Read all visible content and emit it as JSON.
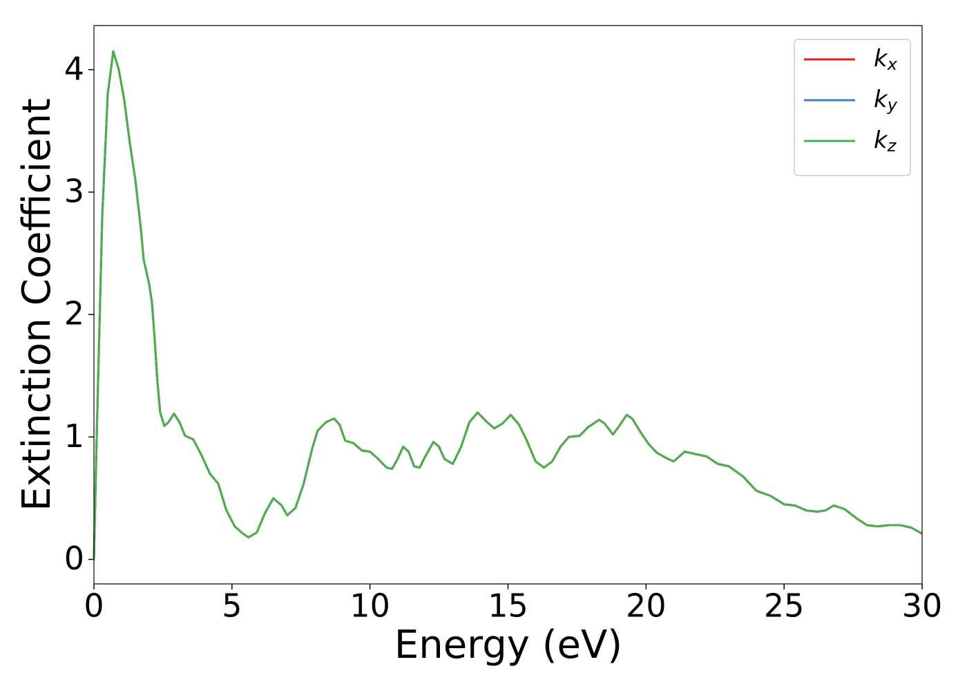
{
  "chart_data": {
    "type": "line",
    "xlabel": "Energy (eV)",
    "ylabel": "Extinction Coefficient",
    "xlim": [
      0,
      30
    ],
    "ylim": [
      -0.2,
      4.36
    ],
    "xticks": [
      0,
      5,
      10,
      15,
      20,
      25,
      30
    ],
    "yticks": [
      0,
      1,
      2,
      3,
      4
    ],
    "legend": "upper right",
    "x": [
      0,
      0.1,
      0.3,
      0.5,
      0.7,
      0.9,
      1.1,
      1.3,
      1.5,
      1.7,
      1.8,
      2.0,
      2.1,
      2.2,
      2.3,
      2.4,
      2.55,
      2.7,
      2.9,
      3.1,
      3.3,
      3.6,
      3.9,
      4.2,
      4.5,
      4.8,
      5.1,
      5.4,
      5.6,
      5.9,
      6.2,
      6.5,
      6.8,
      7.0,
      7.3,
      7.6,
      7.9,
      8.1,
      8.4,
      8.7,
      8.9,
      9.1,
      9.4,
      9.7,
      10.0,
      10.3,
      10.6,
      10.8,
      11.0,
      11.2,
      11.4,
      11.6,
      11.8,
      12.0,
      12.3,
      12.5,
      12.7,
      13.0,
      13.3,
      13.6,
      13.9,
      14.2,
      14.5,
      14.8,
      15.1,
      15.4,
      15.7,
      16.0,
      16.3,
      16.6,
      16.9,
      17.2,
      17.6,
      17.9,
      18.3,
      18.5,
      18.8,
      19.0,
      19.3,
      19.5,
      19.8,
      20.1,
      20.4,
      20.8,
      21.0,
      21.4,
      21.8,
      22.2,
      22.6,
      23.0,
      23.5,
      24.0,
      24.5,
      25.0,
      25.4,
      25.8,
      26.2,
      26.5,
      26.8,
      27.2,
      27.6,
      28.0,
      28.4,
      28.8,
      29.2,
      29.6,
      30.0
    ],
    "series": [
      {
        "name": "kx",
        "color": "#e41a1c",
        "values": [
          0,
          1.0,
          2.8,
          3.8,
          4.15,
          4.0,
          3.75,
          3.4,
          3.1,
          2.7,
          2.45,
          2.25,
          2.1,
          1.8,
          1.45,
          1.2,
          1.09,
          1.12,
          1.19,
          1.12,
          1.01,
          0.98,
          0.85,
          0.7,
          0.62,
          0.4,
          0.27,
          0.21,
          0.18,
          0.22,
          0.38,
          0.5,
          0.44,
          0.36,
          0.42,
          0.62,
          0.9,
          1.05,
          1.12,
          1.15,
          1.1,
          0.97,
          0.95,
          0.89,
          0.88,
          0.82,
          0.75,
          0.74,
          0.82,
          0.92,
          0.88,
          0.76,
          0.75,
          0.84,
          0.96,
          0.92,
          0.82,
          0.78,
          0.92,
          1.12,
          1.2,
          1.13,
          1.07,
          1.11,
          1.18,
          1.1,
          0.96,
          0.8,
          0.75,
          0.8,
          0.92,
          1.0,
          1.01,
          1.08,
          1.14,
          1.11,
          1.02,
          1.08,
          1.18,
          1.15,
          1.04,
          0.94,
          0.87,
          0.82,
          0.8,
          0.88,
          0.86,
          0.84,
          0.78,
          0.76,
          0.68,
          0.56,
          0.52,
          0.45,
          0.44,
          0.4,
          0.39,
          0.4,
          0.44,
          0.41,
          0.34,
          0.28,
          0.27,
          0.28,
          0.28,
          0.26,
          0.21
        ]
      },
      {
        "name": "ky",
        "color": "#377eb8",
        "values": [
          0,
          1.0,
          2.8,
          3.8,
          4.15,
          4.0,
          3.75,
          3.4,
          3.1,
          2.7,
          2.45,
          2.25,
          2.1,
          1.8,
          1.45,
          1.2,
          1.09,
          1.12,
          1.19,
          1.12,
          1.01,
          0.98,
          0.85,
          0.7,
          0.62,
          0.4,
          0.27,
          0.21,
          0.18,
          0.22,
          0.38,
          0.5,
          0.44,
          0.36,
          0.42,
          0.62,
          0.9,
          1.05,
          1.12,
          1.15,
          1.1,
          0.97,
          0.95,
          0.89,
          0.88,
          0.82,
          0.75,
          0.74,
          0.82,
          0.92,
          0.88,
          0.76,
          0.75,
          0.84,
          0.96,
          0.92,
          0.82,
          0.78,
          0.92,
          1.12,
          1.2,
          1.13,
          1.07,
          1.11,
          1.18,
          1.1,
          0.96,
          0.8,
          0.75,
          0.8,
          0.92,
          1.0,
          1.01,
          1.08,
          1.14,
          1.11,
          1.02,
          1.08,
          1.18,
          1.15,
          1.04,
          0.94,
          0.87,
          0.82,
          0.8,
          0.88,
          0.86,
          0.84,
          0.78,
          0.76,
          0.68,
          0.56,
          0.52,
          0.45,
          0.44,
          0.4,
          0.39,
          0.4,
          0.44,
          0.41,
          0.34,
          0.28,
          0.27,
          0.28,
          0.28,
          0.26,
          0.21
        ]
      },
      {
        "name": "kz",
        "color": "#4daf4a",
        "values": [
          0,
          1.0,
          2.8,
          3.8,
          4.15,
          4.0,
          3.75,
          3.4,
          3.1,
          2.7,
          2.45,
          2.25,
          2.1,
          1.8,
          1.45,
          1.2,
          1.09,
          1.12,
          1.19,
          1.12,
          1.01,
          0.98,
          0.85,
          0.7,
          0.62,
          0.4,
          0.27,
          0.21,
          0.18,
          0.22,
          0.38,
          0.5,
          0.44,
          0.36,
          0.42,
          0.62,
          0.9,
          1.05,
          1.12,
          1.15,
          1.1,
          0.97,
          0.95,
          0.89,
          0.88,
          0.82,
          0.75,
          0.74,
          0.82,
          0.92,
          0.88,
          0.76,
          0.75,
          0.84,
          0.96,
          0.92,
          0.82,
          0.78,
          0.92,
          1.12,
          1.2,
          1.13,
          1.07,
          1.11,
          1.18,
          1.1,
          0.96,
          0.8,
          0.75,
          0.8,
          0.92,
          1.0,
          1.01,
          1.08,
          1.14,
          1.11,
          1.02,
          1.08,
          1.18,
          1.15,
          1.04,
          0.94,
          0.87,
          0.82,
          0.8,
          0.88,
          0.86,
          0.84,
          0.78,
          0.76,
          0.68,
          0.56,
          0.52,
          0.45,
          0.44,
          0.4,
          0.39,
          0.4,
          0.44,
          0.41,
          0.34,
          0.28,
          0.27,
          0.28,
          0.28,
          0.26,
          0.21
        ]
      }
    ]
  }
}
